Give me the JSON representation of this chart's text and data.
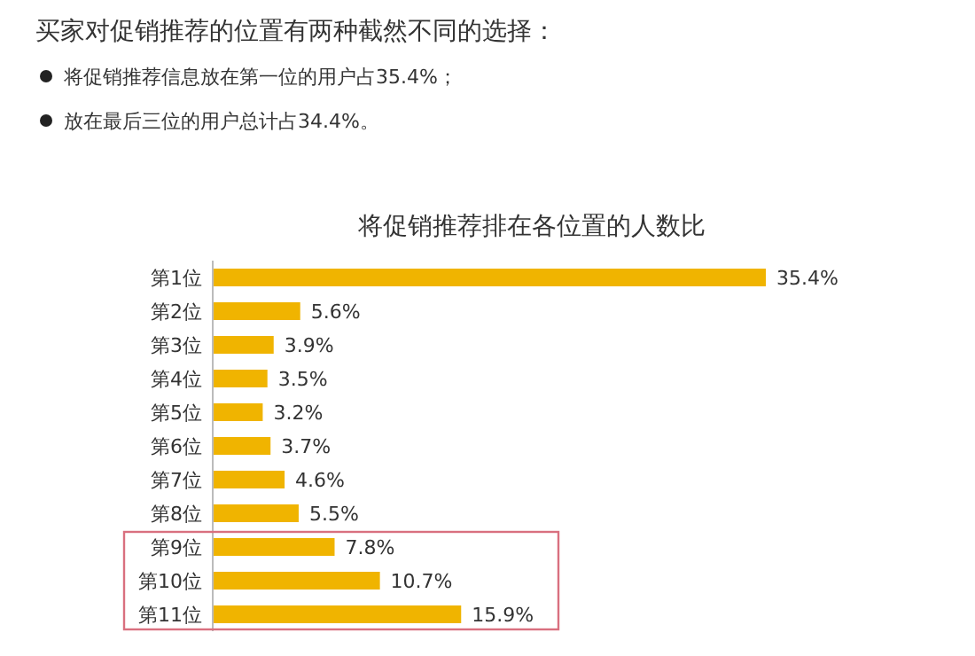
{
  "chart_data": {
    "type": "bar",
    "orientation": "horizontal",
    "title": "将促销推荐排在各位置的人数比",
    "annotations": [
      "买家对促销推荐的位置有两种截然不同的选择：",
      "将促销推荐信息放在第一位的用户占35.4%；",
      "放在最后三位的用户总计占34.4%。"
    ],
    "categories": [
      "第1位",
      "第2位",
      "第3位",
      "第4位",
      "第5位",
      "第6位",
      "第7位",
      "第8位",
      "第9位",
      "第10位",
      "第11位"
    ],
    "values": [
      35.4,
      5.6,
      3.9,
      3.5,
      3.2,
      3.7,
      4.6,
      5.5,
      7.8,
      10.7,
      15.9
    ],
    "value_labels": [
      "35.4%",
      "5.6%",
      "3.9%",
      "3.5%",
      "3.2%",
      "3.7%",
      "4.6%",
      "5.5%",
      "7.8%",
      "10.7%",
      "15.9%"
    ],
    "color": "#f0b400"
  }
}
